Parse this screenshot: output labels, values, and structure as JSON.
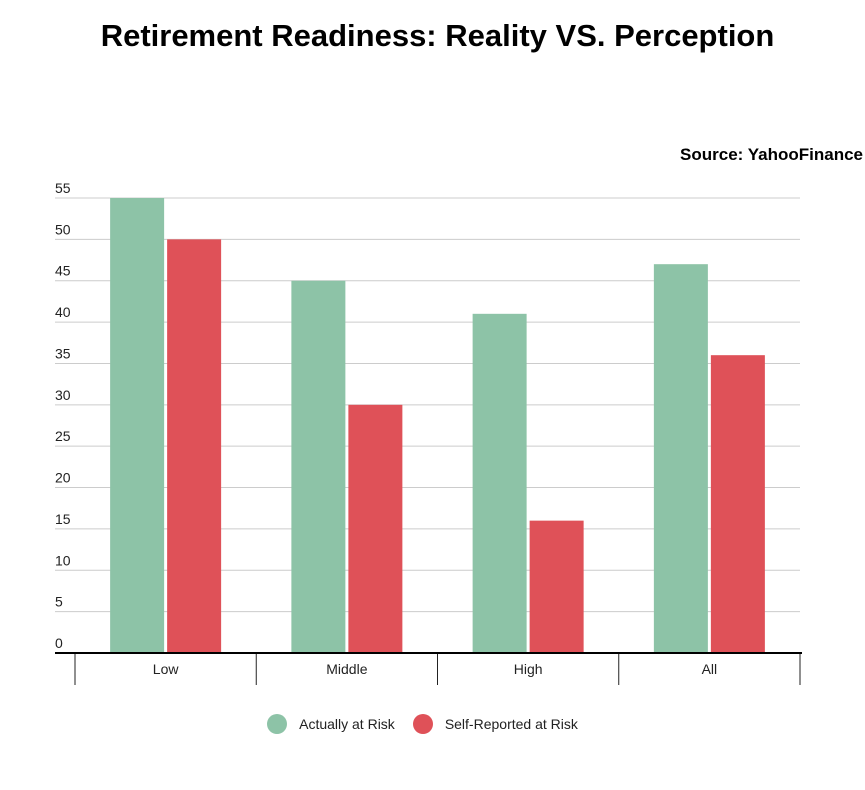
{
  "chart_data": {
    "type": "bar",
    "title": "Retirement Readiness: Reality VS. Perception",
    "source": "Source: YahooFinance",
    "categories": [
      "Low",
      "Middle",
      "High",
      "All"
    ],
    "series": [
      {
        "name": "Actually at Risk",
        "color": "#8dc3a7",
        "values": [
          55,
          45,
          41,
          47
        ]
      },
      {
        "name": "Self-Reported at Risk",
        "color": "#df5158",
        "values": [
          50,
          30,
          16,
          36
        ]
      }
    ],
    "xlabel": "",
    "ylabel": "",
    "ylim": [
      0,
      55
    ],
    "yticks": [
      0,
      5,
      10,
      15,
      20,
      25,
      30,
      35,
      40,
      45,
      50,
      55
    ],
    "grid": true,
    "legend_position": "bottom"
  }
}
